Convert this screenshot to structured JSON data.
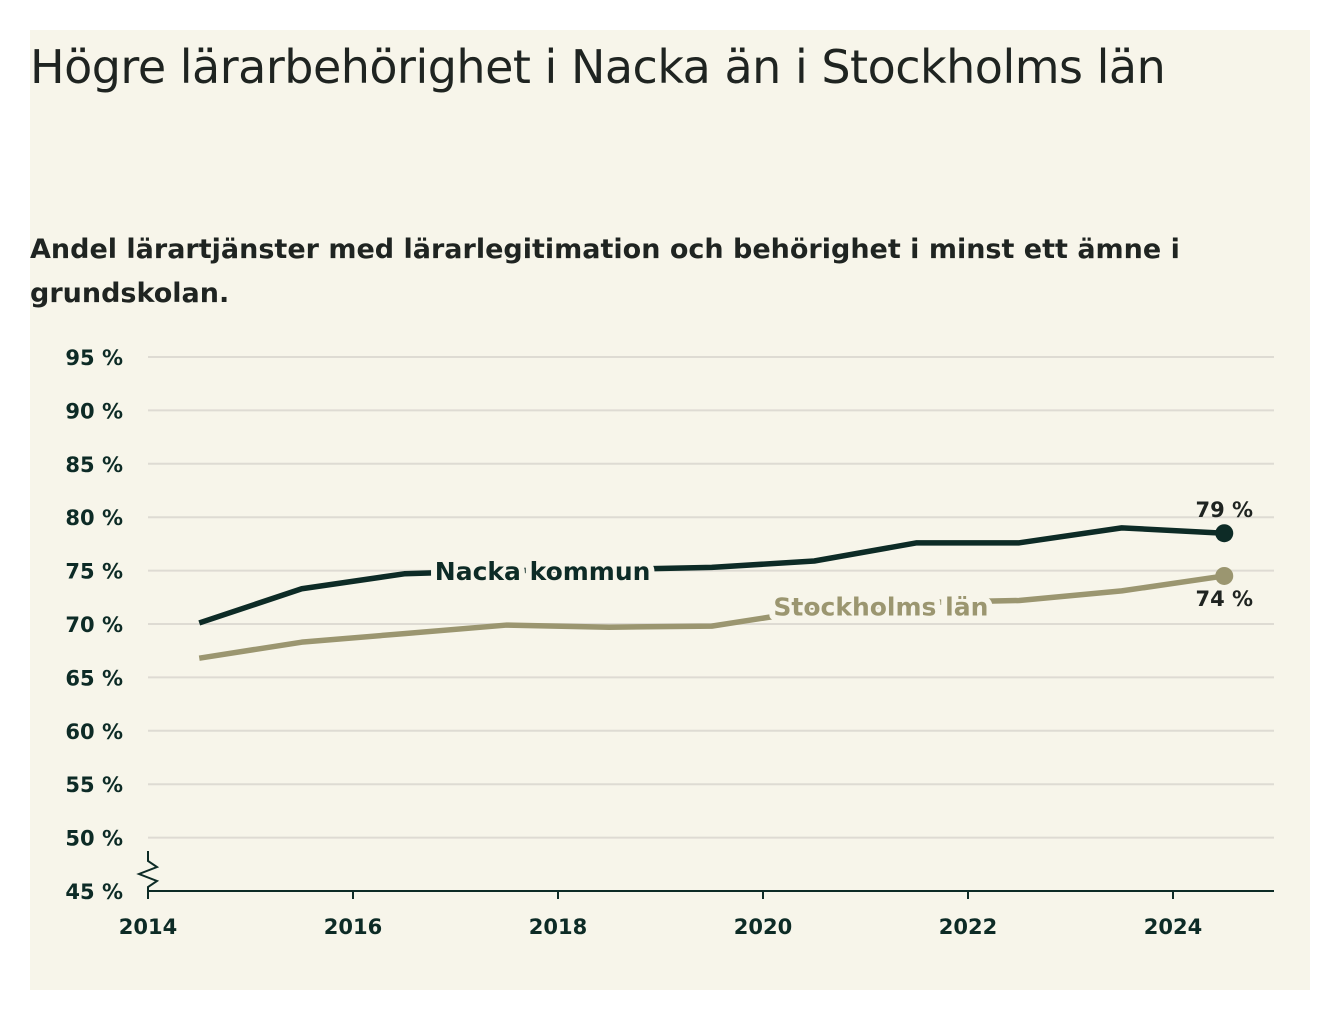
{
  "title": "Högre lärarbehörighet i Nacka än i Stockholms län",
  "subtitle": "Andel lärartjänster med lärarlegitimation och behörighet i minst ett ämne i grundskolan.",
  "colors": {
    "background": "#f7f5ea",
    "nacka": "#0d2b26",
    "stockholm": "#9b9670",
    "grid": "#dedbd3",
    "axis": "#0d2b26"
  },
  "chart_data": {
    "type": "line",
    "title": "Högre lärarbehörighet i Nacka än i Stockholms län",
    "subtitle": "Andel lärartjänster med lärarlegitimation och behörighet i minst ett ämne i grundskolan.",
    "xlabel": "",
    "ylabel": "",
    "xlim": [
      2014,
      2025
    ],
    "ylim": [
      45,
      95
    ],
    "y_axis_break": true,
    "y_ticks": [
      45,
      50,
      55,
      60,
      65,
      70,
      75,
      80,
      85,
      90,
      95
    ],
    "y_tick_labels": [
      "45 %",
      "50 %",
      "55 %",
      "60 %",
      "65 %",
      "70 %",
      "75 %",
      "80 %",
      "85 %",
      "90 %",
      "95 %"
    ],
    "x_ticks": [
      2014,
      2016,
      2018,
      2020,
      2022,
      2024
    ],
    "x_tick_labels": [
      "2014",
      "2016",
      "2018",
      "2020",
      "2022",
      "2024"
    ],
    "grid": "horizontal",
    "legend": "inline labels on lines",
    "series": [
      {
        "name": "Nacka kommun",
        "x": [
          2014.5,
          2015.5,
          2016.5,
          2017.5,
          2018.5,
          2019.5,
          2020.5,
          2021.5,
          2022.5,
          2023.5,
          2024.5
        ],
        "values": [
          70.1,
          73.3,
          74.7,
          75.0,
          75.1,
          75.3,
          75.9,
          77.6,
          77.6,
          79.0,
          78.5
        ],
        "end_label": "79 %"
      },
      {
        "name": "Stockholms län",
        "x": [
          2014.5,
          2015.5,
          2016.5,
          2017.5,
          2018.5,
          2019.5,
          2020.5,
          2021.5,
          2022.5,
          2023.5,
          2024.5
        ],
        "values": [
          66.8,
          68.3,
          69.1,
          69.9,
          69.7,
          69.8,
          71.3,
          72.0,
          72.2,
          73.1,
          74.5
        ],
        "end_label": "74 %"
      }
    ]
  }
}
